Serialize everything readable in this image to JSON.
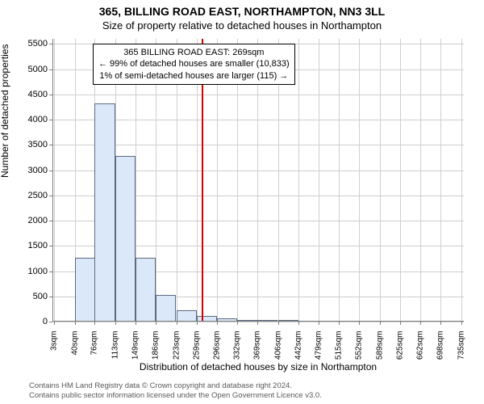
{
  "title": "365, BILLING ROAD EAST, NORTHAMPTON, NN3 3LL",
  "subtitle": "Size of property relative to detached houses in Northampton",
  "ylabel": "Number of detached properties",
  "xlabel": "Distribution of detached houses by size in Northampton",
  "chart": {
    "type": "histogram",
    "xlim": [
      0,
      740
    ],
    "ylim": [
      0,
      5600
    ],
    "ytick_step": 500,
    "yticks": [
      0,
      500,
      1000,
      1500,
      2000,
      2500,
      3000,
      3500,
      4000,
      4500,
      5000,
      5500
    ],
    "xticks": [
      3,
      40,
      76,
      113,
      149,
      186,
      223,
      259,
      296,
      332,
      369,
      406,
      442,
      479,
      515,
      552,
      589,
      625,
      662,
      698,
      735
    ],
    "xtick_suffix": "sqm",
    "bar_color": "#dbe8f9",
    "bar_border_color": "#5b6b7f",
    "grid_color": "#cfcfcf",
    "background_color": "#ffffff",
    "axis_color": "#7f7f7f",
    "bar_width_sqm": 36.5,
    "bars": [
      {
        "x": 3,
        "count": 0
      },
      {
        "x": 40,
        "count": 1270
      },
      {
        "x": 76,
        "count": 4320
      },
      {
        "x": 113,
        "count": 3280
      },
      {
        "x": 149,
        "count": 1260
      },
      {
        "x": 186,
        "count": 530
      },
      {
        "x": 223,
        "count": 230
      },
      {
        "x": 259,
        "count": 120
      },
      {
        "x": 296,
        "count": 70
      },
      {
        "x": 332,
        "count": 40
      },
      {
        "x": 369,
        "count": 18
      },
      {
        "x": 406,
        "count": 28
      },
      {
        "x": 442,
        "count": 0
      },
      {
        "x": 479,
        "count": 0
      },
      {
        "x": 515,
        "count": 0
      },
      {
        "x": 552,
        "count": 0
      },
      {
        "x": 589,
        "count": 0
      },
      {
        "x": 625,
        "count": 0
      },
      {
        "x": 662,
        "count": 0
      },
      {
        "x": 698,
        "count": 0
      }
    ],
    "marker": {
      "value_sqm": 269,
      "color": "#d40000"
    },
    "annotation": {
      "line1": "365 BILLING ROAD EAST: 269sqm",
      "line2": "← 99% of detached houses are smaller (10,833)",
      "line3": "1% of semi-detached houses are larger (115) →"
    }
  },
  "attribution": {
    "line1": "Contains HM Land Registry data © Crown copyright and database right 2024.",
    "line2": "Contains public sector information licensed under the Open Government Licence v3.0."
  }
}
